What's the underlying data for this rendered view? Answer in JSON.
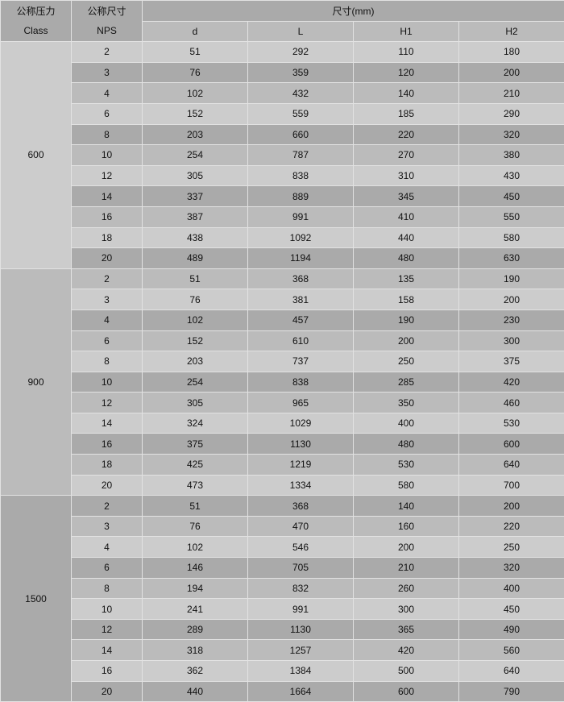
{
  "header": {
    "class_cn": "公称压力",
    "class_en": "Class",
    "nps_cn": "公称尺寸",
    "nps_en": "NPS",
    "dims": "尺寸(mm)",
    "cols": [
      "d",
      "L",
      "H1",
      "H2"
    ]
  },
  "colors": {
    "light": "#cccccc",
    "mid": "#bbbbbb",
    "dark": "#aaaaaa",
    "border": "#e2e2e2"
  },
  "groups": [
    {
      "class": "600",
      "rows": [
        [
          "2",
          "51",
          "292",
          "110",
          "180"
        ],
        [
          "3",
          "76",
          "359",
          "120",
          "200"
        ],
        [
          "4",
          "102",
          "432",
          "140",
          "210"
        ],
        [
          "6",
          "152",
          "559",
          "185",
          "290"
        ],
        [
          "8",
          "203",
          "660",
          "220",
          "320"
        ],
        [
          "10",
          "254",
          "787",
          "270",
          "380"
        ],
        [
          "12",
          "305",
          "838",
          "310",
          "430"
        ],
        [
          "14",
          "337",
          "889",
          "345",
          "450"
        ],
        [
          "16",
          "387",
          "991",
          "410",
          "550"
        ],
        [
          "18",
          "438",
          "1092",
          "440",
          "580"
        ],
        [
          "20",
          "489",
          "1194",
          "480",
          "630"
        ]
      ]
    },
    {
      "class": "900",
      "rows": [
        [
          "2",
          "51",
          "368",
          "135",
          "190"
        ],
        [
          "3",
          "76",
          "381",
          "158",
          "200"
        ],
        [
          "4",
          "102",
          "457",
          "190",
          "230"
        ],
        [
          "6",
          "152",
          "610",
          "200",
          "300"
        ],
        [
          "8",
          "203",
          "737",
          "250",
          "375"
        ],
        [
          "10",
          "254",
          "838",
          "285",
          "420"
        ],
        [
          "12",
          "305",
          "965",
          "350",
          "460"
        ],
        [
          "14",
          "324",
          "1029",
          "400",
          "530"
        ],
        [
          "16",
          "375",
          "1130",
          "480",
          "600"
        ],
        [
          "18",
          "425",
          "1219",
          "530",
          "640"
        ],
        [
          "20",
          "473",
          "1334",
          "580",
          "700"
        ]
      ]
    },
    {
      "class": "1500",
      "rows": [
        [
          "2",
          "51",
          "368",
          "140",
          "200"
        ],
        [
          "3",
          "76",
          "470",
          "160",
          "220"
        ],
        [
          "4",
          "102",
          "546",
          "200",
          "250"
        ],
        [
          "6",
          "146",
          "705",
          "210",
          "320"
        ],
        [
          "8",
          "194",
          "832",
          "260",
          "400"
        ],
        [
          "10",
          "241",
          "991",
          "300",
          "450"
        ],
        [
          "12",
          "289",
          "1130",
          "365",
          "490"
        ],
        [
          "14",
          "318",
          "1257",
          "420",
          "560"
        ],
        [
          "16",
          "362",
          "1384",
          "500",
          "640"
        ],
        [
          "20",
          "440",
          "1664",
          "600",
          "790"
        ]
      ]
    }
  ]
}
